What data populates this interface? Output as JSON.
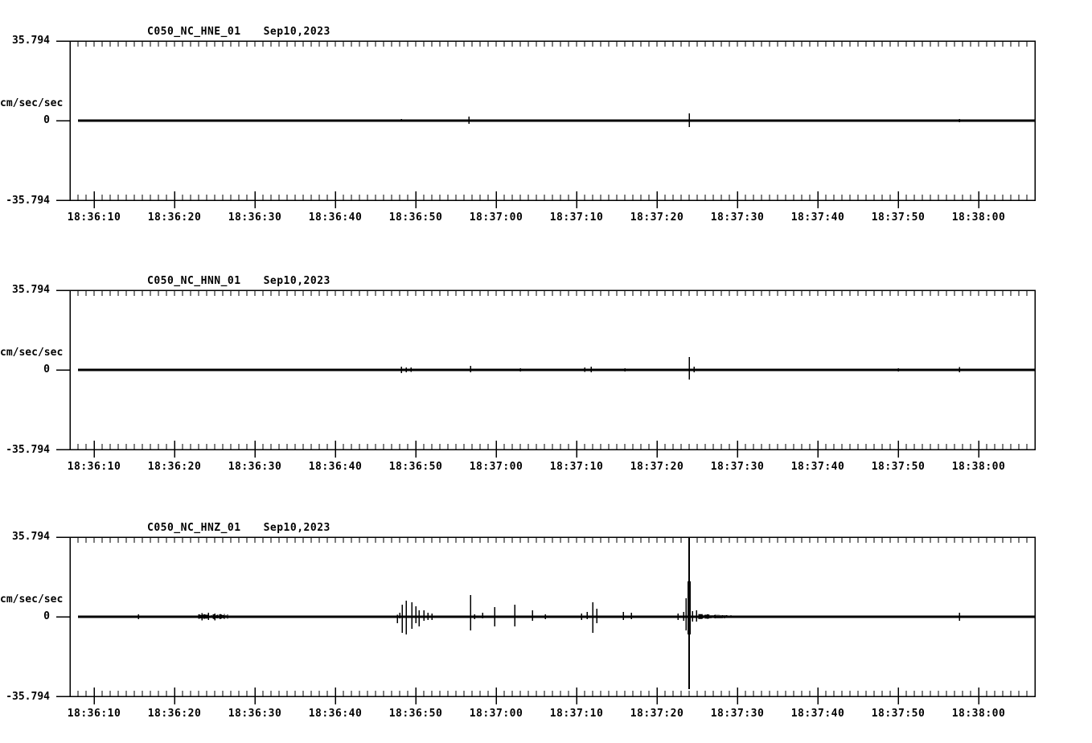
{
  "page": {
    "background": "#ffffff",
    "ink_color": "#000000",
    "description": "Three-channel strong-motion seismogram traces for one station, stacked vertically"
  },
  "chart_data": [
    {
      "type": "line",
      "station": "C050_NC_HNE_01",
      "date": "Sep10,2023",
      "ylabel": "cm/sec/sec",
      "ymax_label": "35.794",
      "yzero_label": "0",
      "ymin_label": "-35.794",
      "ylim": [
        -35.794,
        35.794
      ],
      "x_tick_labels": [
        "18:36:10",
        "18:36:20",
        "18:36:30",
        "18:36:40",
        "18:36:50",
        "18:37:00",
        "18:37:10",
        "18:37:20",
        "18:37:30",
        "18:37:40",
        "18:37:50",
        "18:38:00"
      ],
      "x_tick_seconds_after_18_36_00": [
        10,
        20,
        30,
        40,
        50,
        60,
        70,
        80,
        90,
        100,
        110,
        120
      ],
      "events": [
        {
          "t": 48.2,
          "up": 0.7,
          "down": 0.4
        },
        {
          "t": 48.8,
          "up": 0.4,
          "down": 0.4
        },
        {
          "t": 51.3,
          "up": 0.3,
          "down": 0.5
        },
        {
          "t": 56.6,
          "up": 1.8,
          "down": 1.4
        },
        {
          "t": 59.8,
          "up": 0.5,
          "down": 0.4
        },
        {
          "t": 62.3,
          "up": 0.5,
          "down": 0.4
        },
        {
          "t": 84.0,
          "up": 3.3,
          "down": 2.9
        },
        {
          "t": 117.6,
          "up": 0.7,
          "down": 0.7
        }
      ],
      "noise_bands": []
    },
    {
      "type": "line",
      "station": "C050_NC_HNN_01",
      "date": "Sep10,2023",
      "ylabel": "cm/sec/sec",
      "ymax_label": "35.794",
      "yzero_label": "0",
      "ymin_label": "-35.794",
      "ylim": [
        -35.794,
        35.794
      ],
      "x_tick_labels": [
        "18:36:10",
        "18:36:20",
        "18:36:30",
        "18:36:40",
        "18:36:50",
        "18:37:00",
        "18:37:10",
        "18:37:20",
        "18:37:30",
        "18:37:40",
        "18:37:50",
        "18:38:00"
      ],
      "x_tick_seconds_after_18_36_00": [
        10,
        20,
        30,
        40,
        50,
        60,
        70,
        80,
        90,
        100,
        110,
        120
      ],
      "events": [
        {
          "t": 48.2,
          "up": 1.4,
          "down": 1.4
        },
        {
          "t": 48.8,
          "up": 1.1,
          "down": 1.1
        },
        {
          "t": 49.4,
          "up": 1.1,
          "down": 0.9
        },
        {
          "t": 56.8,
          "up": 1.8,
          "down": 1.1
        },
        {
          "t": 63.0,
          "up": 0.7,
          "down": 0.7
        },
        {
          "t": 71.0,
          "up": 1.1,
          "down": 0.9
        },
        {
          "t": 71.8,
          "up": 1.4,
          "down": 1.1
        },
        {
          "t": 76.0,
          "up": 0.8,
          "down": 0.7
        },
        {
          "t": 84.0,
          "up": 5.8,
          "down": 4.3
        },
        {
          "t": 84.6,
          "up": 1.4,
          "down": 1.1
        },
        {
          "t": 110.0,
          "up": 0.7,
          "down": 0.7
        },
        {
          "t": 117.6,
          "up": 1.3,
          "down": 1.1
        }
      ],
      "noise_bands": [
        {
          "t0": 35,
          "t1": 48,
          "amp": 0.35
        },
        {
          "t0": 48,
          "t1": 62,
          "amp": 0.55
        },
        {
          "t0": 62,
          "t1": 71,
          "amp": 0.45
        },
        {
          "t0": 71,
          "t1": 84,
          "amp": 0.55
        },
        {
          "t0": 84,
          "t1": 97,
          "amp": 0.5
        },
        {
          "t0": 97,
          "t1": 110,
          "amp": 0.35
        }
      ]
    },
    {
      "type": "line",
      "station": "C050_NC_HNZ_01",
      "date": "Sep10,2023",
      "ylabel": "cm/sec/sec",
      "ymax_label": "35.794",
      "yzero_label": "0",
      "ymin_label": "-35.794",
      "ylim": [
        -35.794,
        35.794
      ],
      "x_tick_labels": [
        "18:36:10",
        "18:36:20",
        "18:36:30",
        "18:36:40",
        "18:36:50",
        "18:37:00",
        "18:37:10",
        "18:37:20",
        "18:37:30",
        "18:37:40",
        "18:37:50",
        "18:38:00"
      ],
      "x_tick_seconds_after_18_36_00": [
        10,
        20,
        30,
        40,
        50,
        60,
        70,
        80,
        90,
        100,
        110,
        120
      ],
      "events": [
        {
          "t": 15.5,
          "up": 1.1,
          "down": 1.1
        },
        {
          "t": 18.8,
          "up": 0.3,
          "down": 0.3
        },
        {
          "t": 19.3,
          "up": 0.3,
          "down": 0.3
        },
        {
          "t": 23.4,
          "up": 1.6,
          "down": 1.6
        },
        {
          "t": 24.2,
          "up": 1.8,
          "down": 1.4
        },
        {
          "t": 25.0,
          "up": 1.4,
          "down": 1.6
        },
        {
          "t": 29.3,
          "up": 0.4,
          "down": 0.4
        },
        {
          "t": 47.7,
          "up": 0.9,
          "down": 2.9
        },
        {
          "t": 48.0,
          "up": 1.8,
          "down": 0.7
        },
        {
          "t": 48.3,
          "up": 5.4,
          "down": 7.2
        },
        {
          "t": 48.8,
          "up": 7.2,
          "down": 8.0
        },
        {
          "t": 49.5,
          "up": 6.5,
          "down": 5.4
        },
        {
          "t": 50.0,
          "up": 4.7,
          "down": 2.9
        },
        {
          "t": 50.4,
          "up": 2.9,
          "down": 4.3
        },
        {
          "t": 51.0,
          "up": 2.9,
          "down": 1.8
        },
        {
          "t": 51.5,
          "up": 1.8,
          "down": 1.4
        },
        {
          "t": 52.0,
          "up": 1.4,
          "down": 1.4
        },
        {
          "t": 56.8,
          "up": 9.8,
          "down": 6.1
        },
        {
          "t": 57.3,
          "up": 1.1,
          "down": 1.1
        },
        {
          "t": 58.3,
          "up": 1.8,
          "down": 0.7
        },
        {
          "t": 59.8,
          "up": 4.3,
          "down": 4.3
        },
        {
          "t": 62.3,
          "up": 5.4,
          "down": 4.3
        },
        {
          "t": 64.5,
          "up": 2.9,
          "down": 1.8
        },
        {
          "t": 66.1,
          "up": 1.1,
          "down": 1.1
        },
        {
          "t": 70.6,
          "up": 1.4,
          "down": 1.4
        },
        {
          "t": 71.3,
          "up": 2.2,
          "down": 1.1
        },
        {
          "t": 72.0,
          "up": 6.5,
          "down": 7.2
        },
        {
          "t": 72.5,
          "up": 3.6,
          "down": 2.9
        },
        {
          "t": 75.8,
          "up": 2.2,
          "down": 1.4
        },
        {
          "t": 76.8,
          "up": 1.8,
          "down": 1.1
        },
        {
          "t": 82.6,
          "up": 1.4,
          "down": 1.4
        },
        {
          "t": 83.3,
          "up": 2.2,
          "down": 1.8
        },
        {
          "t": 83.6,
          "up": 8.3,
          "down": 6.1
        },
        {
          "t": 84.0,
          "up": 35.794,
          "down": 32.5,
          "w": 1.6
        },
        {
          "t": 84.0,
          "up": 15.9,
          "down": 8.0,
          "w": 4
        },
        {
          "t": 84.4,
          "up": 2.5,
          "down": 2.2
        },
        {
          "t": 84.9,
          "up": 2.9,
          "down": 2.2
        },
        {
          "t": 117.6,
          "up": 1.8,
          "down": 1.8
        }
      ],
      "noise_bands": [
        {
          "t0": 23.0,
          "t1": 26.6,
          "amp": 1.2
        },
        {
          "t0": 85.2,
          "t1": 91.0,
          "amp": 1.5,
          "amp_end": 0.3
        },
        {
          "t0": 91.0,
          "t1": 93.0,
          "amp": 0.3
        }
      ]
    }
  ]
}
